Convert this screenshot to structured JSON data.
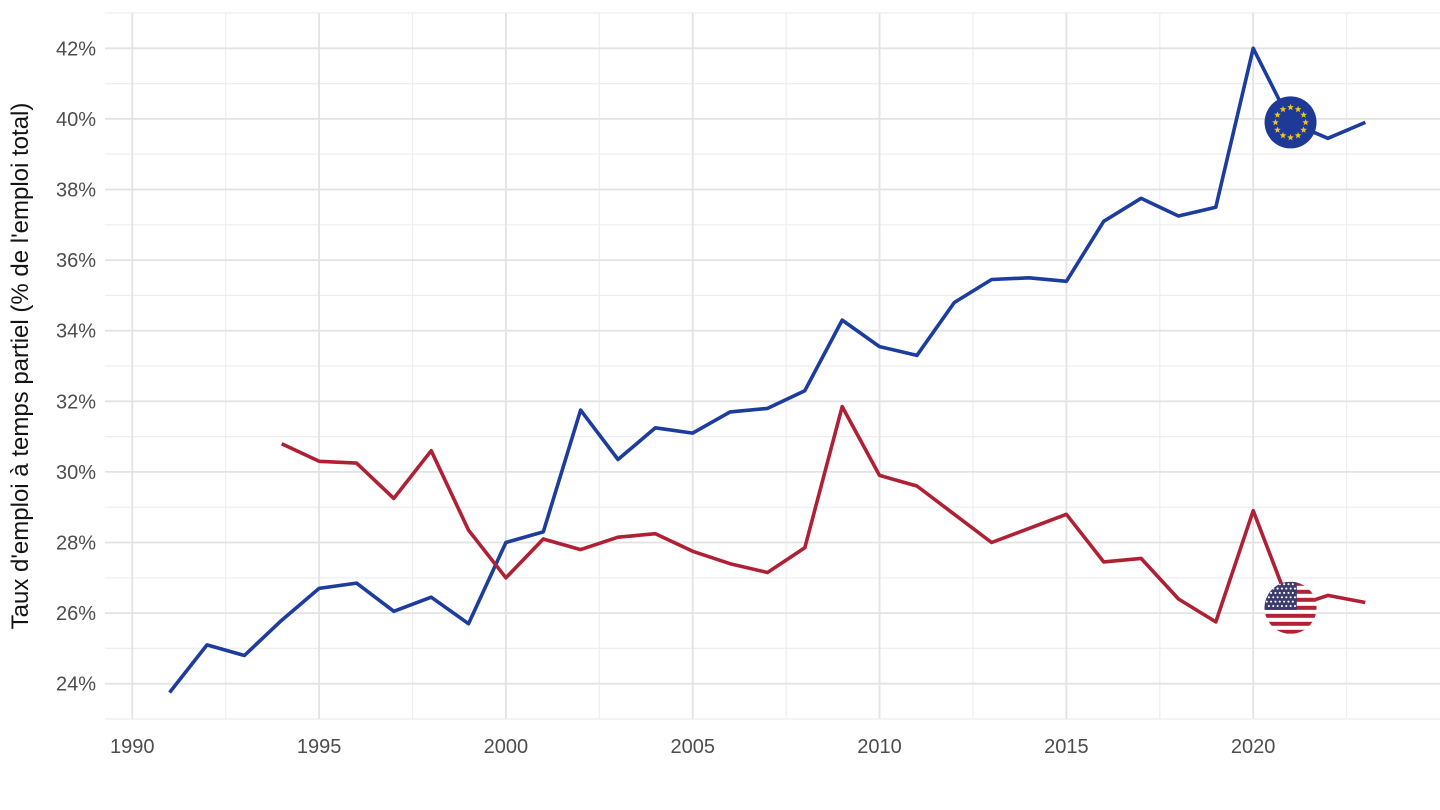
{
  "chart_data": {
    "type": "line",
    "title": "",
    "xlabel": "",
    "ylabel": "Taux d'emploi à temps partiel (% de l'emploi total)",
    "x_major_ticks": [
      1990,
      1995,
      2000,
      2005,
      2010,
      2015,
      2020
    ],
    "x_minor_ticks": [
      1992.5,
      1997.5,
      2002.5,
      2007.5,
      2012.5,
      2017.5,
      2022.5
    ],
    "y_major_ticks": [
      24,
      26,
      28,
      30,
      32,
      34,
      36,
      38,
      40,
      42
    ],
    "y_minor_ticks": [
      23,
      25,
      27,
      29,
      31,
      33,
      35,
      37,
      39,
      41,
      43
    ],
    "y_tick_suffix": "%",
    "xlim": [
      1989.27,
      2025.0
    ],
    "ylim": [
      23,
      43
    ],
    "grid": "major+minor, no axis lines, legend none",
    "series": [
      {
        "name": "union-europeenne",
        "flag_icon": "eu-flag-icon",
        "color": "#1c3c9e",
        "flag_at_x": 2021,
        "x": [
          1991,
          1992,
          1993,
          1994,
          1995,
          1996,
          1997,
          1998,
          1999,
          2000,
          2001,
          2002,
          2003,
          2004,
          2005,
          2006,
          2007,
          2008,
          2009,
          2010,
          2011,
          2012,
          2013,
          2014,
          2015,
          2016,
          2017,
          2018,
          2019,
          2020,
          2021,
          2022,
          2023
        ],
        "values": [
          23.75,
          25.1,
          24.8,
          25.8,
          26.7,
          26.85,
          26.05,
          26.45,
          25.7,
          28.0,
          28.3,
          31.75,
          30.35,
          31.25,
          31.1,
          31.7,
          31.8,
          32.3,
          34.3,
          33.55,
          33.3,
          34.8,
          35.45,
          35.5,
          35.4,
          37.1,
          37.75,
          37.25,
          37.5,
          42.0,
          39.9,
          39.45,
          39.9
        ]
      },
      {
        "name": "etats-unis",
        "flag_icon": "us-flag-icon",
        "color": "#b02035",
        "flag_at_x": 2021,
        "x": [
          1994,
          1995,
          1996,
          1997,
          1998,
          1999,
          2000,
          2001,
          2002,
          2003,
          2004,
          2005,
          2006,
          2007,
          2008,
          2009,
          2010,
          2011,
          2012,
          2013,
          2014,
          2015,
          2016,
          2017,
          2018,
          2019,
          2020,
          2021,
          2022,
          2023
        ],
        "values": [
          30.8,
          30.3,
          30.25,
          29.25,
          30.6,
          28.35,
          27.0,
          28.1,
          27.8,
          28.15,
          28.25,
          27.75,
          27.4,
          27.15,
          27.85,
          31.85,
          29.9,
          29.6,
          28.8,
          28.0,
          28.4,
          28.8,
          27.45,
          27.55,
          26.4,
          25.75,
          28.9,
          26.15,
          26.5,
          26.3
        ]
      }
    ],
    "colors": {
      "background": "#ffffff",
      "grid_major": "#e3e3e3",
      "grid_minor": "#eeeeee",
      "tick_text": "#4d4d4d",
      "axis_title_text": "#141414",
      "eu_flag_bg": "#1e3a96",
      "eu_flag_star": "#f7c31a",
      "us_flag_canton": "#3c3b6e",
      "us_flag_red": "#b22234",
      "us_flag_white": "#ffffff"
    }
  }
}
